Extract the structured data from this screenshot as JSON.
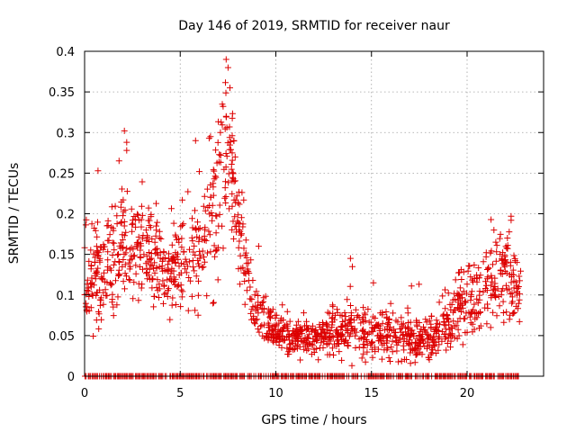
{
  "chart_data": {
    "type": "scatter",
    "title": "Day 146 of 2019, SRMTID for receiver naur",
    "xlabel": "GPS time / hours",
    "ylabel": "SRMTID / TECUs",
    "xlim": [
      0,
      24
    ],
    "ylim": [
      0,
      0.4
    ],
    "x_ticks": [
      {
        "value": 0,
        "label": "0"
      },
      {
        "value": 5,
        "label": "5"
      },
      {
        "value": 10,
        "label": "10"
      },
      {
        "value": 15,
        "label": "15"
      },
      {
        "value": 20,
        "label": "20"
      }
    ],
    "y_ticks": [
      {
        "value": 0,
        "label": "0"
      },
      {
        "value": 0.05,
        "label": "0.05"
      },
      {
        "value": 0.1,
        "label": "0.1"
      },
      {
        "value": 0.15,
        "label": "0.15"
      },
      {
        "value": 0.2,
        "label": "0.2"
      },
      {
        "value": 0.25,
        "label": "0.25"
      },
      {
        "value": 0.3,
        "label": "0.3"
      },
      {
        "value": 0.35,
        "label": "0.35"
      },
      {
        "value": 0.4,
        "label": "0.4"
      }
    ],
    "grid": true,
    "marker": "+",
    "series": [
      {
        "name": "SRMTID",
        "color": "#dd0000",
        "x_range": [
          0,
          22.8
        ],
        "profile": [
          {
            "x": 0.0,
            "y": 0.12,
            "spread": 0.035
          },
          {
            "x": 1.0,
            "y": 0.13,
            "spread": 0.045
          },
          {
            "x": 2.0,
            "y": 0.16,
            "spread": 0.05
          },
          {
            "x": 3.0,
            "y": 0.16,
            "spread": 0.045
          },
          {
            "x": 4.0,
            "y": 0.14,
            "spread": 0.04
          },
          {
            "x": 5.0,
            "y": 0.13,
            "spread": 0.04
          },
          {
            "x": 6.0,
            "y": 0.17,
            "spread": 0.055
          },
          {
            "x": 7.0,
            "y": 0.22,
            "spread": 0.07
          },
          {
            "x": 7.5,
            "y": 0.27,
            "spread": 0.08
          },
          {
            "x": 8.0,
            "y": 0.2,
            "spread": 0.06
          },
          {
            "x": 8.5,
            "y": 0.12,
            "spread": 0.04
          },
          {
            "x": 9.0,
            "y": 0.08,
            "spread": 0.03
          },
          {
            "x": 10.0,
            "y": 0.05,
            "spread": 0.015
          },
          {
            "x": 12.0,
            "y": 0.045,
            "spread": 0.015
          },
          {
            "x": 13.0,
            "y": 0.06,
            "spread": 0.02
          },
          {
            "x": 14.0,
            "y": 0.06,
            "spread": 0.025
          },
          {
            "x": 15.0,
            "y": 0.055,
            "spread": 0.025
          },
          {
            "x": 16.0,
            "y": 0.05,
            "spread": 0.02
          },
          {
            "x": 17.0,
            "y": 0.045,
            "spread": 0.02
          },
          {
            "x": 18.0,
            "y": 0.05,
            "spread": 0.02
          },
          {
            "x": 19.0,
            "y": 0.06,
            "spread": 0.025
          },
          {
            "x": 20.0,
            "y": 0.09,
            "spread": 0.03
          },
          {
            "x": 21.0,
            "y": 0.11,
            "spread": 0.035
          },
          {
            "x": 22.0,
            "y": 0.12,
            "spread": 0.04
          },
          {
            "x": 22.8,
            "y": 0.1,
            "spread": 0.03
          }
        ],
        "outliers": [
          {
            "x": 7.4,
            "y": 0.39
          },
          {
            "x": 7.5,
            "y": 0.38
          },
          {
            "x": 7.6,
            "y": 0.355
          },
          {
            "x": 7.2,
            "y": 0.335
          },
          {
            "x": 7.4,
            "y": 0.32
          },
          {
            "x": 7.1,
            "y": 0.3
          },
          {
            "x": 7.8,
            "y": 0.29
          },
          {
            "x": 5.8,
            "y": 0.29
          },
          {
            "x": 2.2,
            "y": 0.288
          },
          {
            "x": 2.2,
            "y": 0.278
          },
          {
            "x": 1.8,
            "y": 0.265
          },
          {
            "x": 0.7,
            "y": 0.253
          },
          {
            "x": 6.0,
            "y": 0.252
          },
          {
            "x": 22.3,
            "y": 0.197
          },
          {
            "x": 22.3,
            "y": 0.192
          },
          {
            "x": 21.4,
            "y": 0.18
          },
          {
            "x": 21.5,
            "y": 0.165
          },
          {
            "x": 9.1,
            "y": 0.16
          },
          {
            "x": 13.9,
            "y": 0.145
          },
          {
            "x": 14.0,
            "y": 0.135
          },
          {
            "x": 22.6,
            "y": 0.14
          },
          {
            "x": 15.1,
            "y": 0.115
          },
          {
            "x": 21.0,
            "y": 0.152
          }
        ],
        "zeros_x_range": [
          0,
          22.7
        ]
      }
    ]
  }
}
